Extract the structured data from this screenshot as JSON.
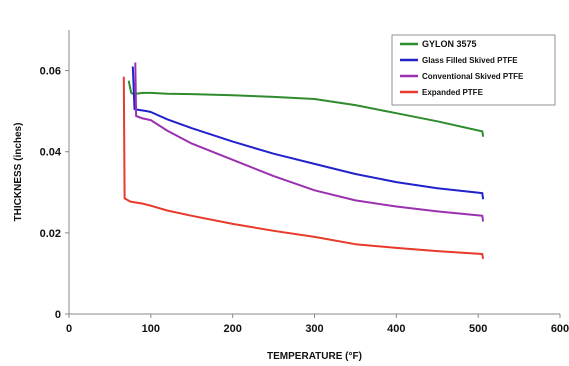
{
  "chart_data": {
    "type": "line",
    "title": "",
    "xlabel": "TEMPERATURE (°F)",
    "ylabel": "THICKNESS (inches)",
    "xlim": [
      0,
      600
    ],
    "ylim": [
      0,
      0.07
    ],
    "x_ticks": [
      0,
      100,
      200,
      300,
      400,
      500,
      600
    ],
    "y_ticks": [
      0,
      0.02,
      0.04,
      0.06
    ],
    "x_tick_labels": [
      "0",
      "100",
      "200",
      "300",
      "400",
      "500",
      "600"
    ],
    "y_tick_labels": [
      "0",
      "0.02",
      "0.04",
      "0.06"
    ],
    "grid": false,
    "legend_position": "top-right",
    "series": [
      {
        "name": "GYLON 3575",
        "color": "#2e8b2e",
        "points": [
          [
            73,
            0.0575
          ],
          [
            76,
            0.0545
          ],
          [
            79,
            0.0542
          ],
          [
            82,
            0.0543
          ],
          [
            90,
            0.0545
          ],
          [
            100,
            0.0545
          ],
          [
            120,
            0.0543
          ],
          [
            150,
            0.0542
          ],
          [
            200,
            0.0539
          ],
          [
            250,
            0.0535
          ],
          [
            300,
            0.053
          ],
          [
            350,
            0.0515
          ],
          [
            400,
            0.0495
          ],
          [
            450,
            0.0475
          ],
          [
            505,
            0.045
          ],
          [
            506,
            0.0437
          ]
        ]
      },
      {
        "name": "Glass Filled Skived PTFE",
        "color": "#2222cc",
        "points": [
          [
            78,
            0.061
          ],
          [
            80,
            0.0505
          ],
          [
            85,
            0.0503
          ],
          [
            95,
            0.05
          ],
          [
            100,
            0.0498
          ],
          [
            120,
            0.048
          ],
          [
            150,
            0.0458
          ],
          [
            200,
            0.0425
          ],
          [
            250,
            0.0395
          ],
          [
            300,
            0.037
          ],
          [
            350,
            0.0345
          ],
          [
            400,
            0.0325
          ],
          [
            450,
            0.031
          ],
          [
            505,
            0.0298
          ],
          [
            506,
            0.0283
          ]
        ]
      },
      {
        "name": "Conventional Skived PTFE",
        "color": "#9b30b0",
        "points": [
          [
            81,
            0.062
          ],
          [
            82,
            0.0488
          ],
          [
            90,
            0.0482
          ],
          [
            100,
            0.0478
          ],
          [
            120,
            0.0452
          ],
          [
            150,
            0.042
          ],
          [
            200,
            0.038
          ],
          [
            250,
            0.034
          ],
          [
            300,
            0.0305
          ],
          [
            350,
            0.028
          ],
          [
            400,
            0.0265
          ],
          [
            450,
            0.0253
          ],
          [
            505,
            0.0242
          ],
          [
            506,
            0.0228
          ]
        ]
      },
      {
        "name": "Expanded PTFE",
        "color": "#e8392a",
        "points": [
          [
            67,
            0.0585
          ],
          [
            68,
            0.0285
          ],
          [
            75,
            0.0277
          ],
          [
            90,
            0.0272
          ],
          [
            100,
            0.0267
          ],
          [
            120,
            0.0255
          ],
          [
            150,
            0.0242
          ],
          [
            200,
            0.0222
          ],
          [
            250,
            0.0205
          ],
          [
            300,
            0.019
          ],
          [
            350,
            0.0172
          ],
          [
            400,
            0.0163
          ],
          [
            450,
            0.0155
          ],
          [
            505,
            0.0148
          ],
          [
            506,
            0.0136
          ]
        ]
      }
    ]
  }
}
